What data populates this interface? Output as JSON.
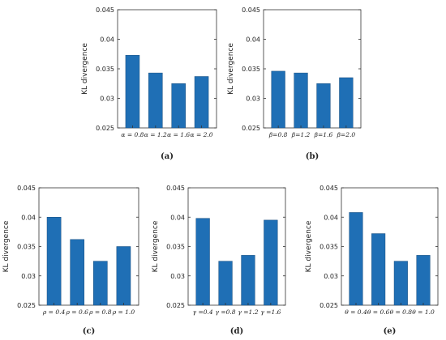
{
  "bar_color": "#1f6fb5",
  "chart_data": [
    {
      "type": "bar",
      "caption": "(a)",
      "ylabel": "KL divergence",
      "ylim": [
        0.025,
        0.045
      ],
      "yticks": [
        "0.025",
        "0.03",
        "0.035",
        "0.04",
        "0.045"
      ],
      "categories": [
        "α = 0.8",
        "α = 1.2",
        "α = 1.6",
        "α = 2.0"
      ],
      "values": [
        0.0373,
        0.0343,
        0.0325,
        0.0337
      ]
    },
    {
      "type": "bar",
      "caption": "(b)",
      "ylabel": "KL divergence",
      "ylim": [
        0.025,
        0.045
      ],
      "yticks": [
        "0.025",
        "0.03",
        "0.035",
        "0.04",
        "0.045"
      ],
      "categories": [
        "β=0.8",
        "β=1.2",
        "β=1.6",
        "β=2.0"
      ],
      "values": [
        0.0346,
        0.0343,
        0.0325,
        0.0335
      ]
    },
    {
      "type": "bar",
      "caption": "(c)",
      "ylabel": "KL divergence",
      "ylim": [
        0.025,
        0.045
      ],
      "yticks": [
        "0.025",
        "0.03",
        "0.035",
        "0.04",
        "0.045"
      ],
      "categories": [
        "ρ = 0.4",
        "ρ = 0.6",
        "ρ = 0.8",
        "ρ = 1.0"
      ],
      "values": [
        0.04,
        0.0362,
        0.0325,
        0.035
      ]
    },
    {
      "type": "bar",
      "caption": "(d)",
      "ylabel": "KL divergence",
      "ylim": [
        0.025,
        0.045
      ],
      "yticks": [
        "0.025",
        "0.03",
        "0.035",
        "0.04",
        "0.045"
      ],
      "categories": [
        "γ =0.4",
        "γ =0.8",
        "γ =1.2",
        "γ =1.6"
      ],
      "values": [
        0.0398,
        0.0325,
        0.0335,
        0.0395
      ]
    },
    {
      "type": "bar",
      "caption": "(e)",
      "ylabel": "KL divergence",
      "ylim": [
        0.025,
        0.045
      ],
      "yticks": [
        "0.025",
        "0.03",
        "0.035",
        "0.04",
        "0.045"
      ],
      "categories": [
        "θ = 0.4",
        "θ = 0.6",
        "θ = 0.8",
        "θ = 1.0"
      ],
      "values": [
        0.0408,
        0.0372,
        0.0325,
        0.0335
      ]
    }
  ]
}
